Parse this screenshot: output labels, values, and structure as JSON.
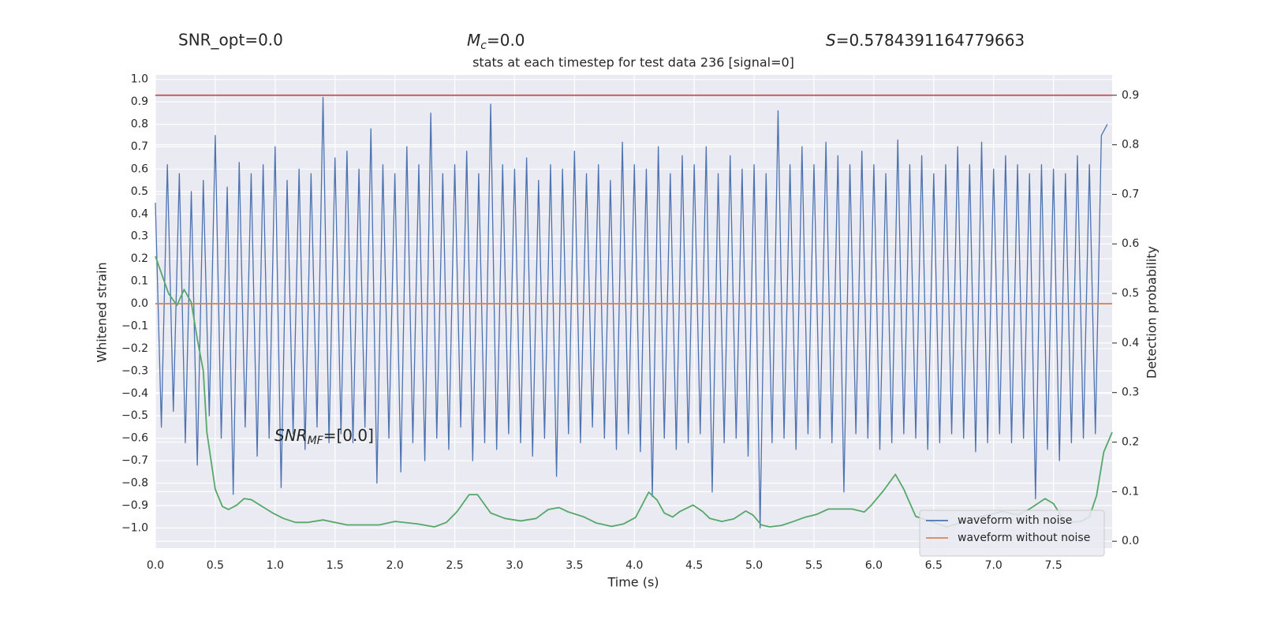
{
  "chart_data": {
    "type": "line",
    "title": "stats at each timestep for test data 236 [signal=0]",
    "annotations": {
      "snr_opt": {
        "text": "SNR_opt=0.0"
      },
      "mc": {
        "symbol": "M",
        "subscript": "c",
        "text": "=0.0"
      },
      "s": {
        "symbol": "S",
        "text": "=0.5784391164779663"
      },
      "snr_mf": {
        "symbol": "SNR",
        "subscript": "MF",
        "text": "=[0.0]"
      }
    },
    "x_label": "Time (s)",
    "y_label": "Whitened strain",
    "y2_label": "Detection probability",
    "xlim": [
      0,
      7.99
    ],
    "ylim": [
      -1.09,
      1.02
    ],
    "y2lim": [
      -0.014,
      0.941
    ],
    "xticks": [
      {
        "value": 0,
        "label": "0.0"
      },
      0.5,
      {
        "value": 1,
        "label": "1.0"
      },
      1.5,
      {
        "value": 2,
        "label": "2.0"
      },
      2.5,
      {
        "value": 3,
        "label": "3.0"
      },
      3.5,
      {
        "value": 4,
        "label": "4.0"
      },
      4.5,
      {
        "value": 5,
        "label": "5.0"
      },
      5.5,
      {
        "value": 6,
        "label": "6.0"
      },
      6.5,
      {
        "value": 7,
        "label": "7.0"
      },
      7.5
    ],
    "yticks": [
      {
        "value": 1,
        "label": "1.0"
      },
      0.9,
      0.8,
      0.7,
      0.6,
      0.5,
      0.4,
      0.3,
      0.2,
      0.1,
      {
        "value": 0,
        "label": "0.0"
      },
      {
        "value": -0.1,
        "label": "−0.1"
      },
      {
        "value": -0.2,
        "label": "−0.2"
      },
      {
        "value": -0.3,
        "label": "−0.3"
      },
      {
        "value": -0.4,
        "label": "−0.4"
      },
      {
        "value": -0.5,
        "label": "−0.5"
      },
      {
        "value": -0.6,
        "label": "−0.6"
      },
      {
        "value": -0.7,
        "label": "−0.7"
      },
      {
        "value": -0.8,
        "label": "−0.8"
      },
      {
        "value": -0.9,
        "label": "−0.9"
      },
      {
        "value": -1,
        "label": "−1.0"
      }
    ],
    "y2ticks": [
      0.9,
      0.8,
      0.7,
      0.6,
      0.5,
      0.4,
      0.3,
      0.2,
      0.1,
      {
        "value": 0,
        "label": "0.0"
      }
    ],
    "grid": true,
    "legend": "lower right",
    "series": [
      {
        "name": "waveform with noise",
        "color": "#4c72b0",
        "x": [
          0,
          0.05,
          0.1,
          0.15,
          0.2,
          0.25,
          0.3,
          0.35,
          0.4,
          0.45,
          0.5,
          0.55,
          0.6,
          0.65,
          0.7,
          0.75,
          0.8,
          0.85,
          0.9,
          0.95,
          1,
          1.05,
          1.1,
          1.15,
          1.2,
          1.25,
          1.3,
          1.35,
          1.4,
          1.45,
          1.5,
          1.55,
          1.6,
          1.65,
          1.7,
          1.75,
          1.8,
          1.85,
          1.9,
          1.95,
          2,
          2.05,
          2.1,
          2.15,
          2.2,
          2.25,
          2.3,
          2.35,
          2.4,
          2.45,
          2.5,
          2.55,
          2.6,
          2.65,
          2.7,
          2.75,
          2.8,
          2.85,
          2.9,
          2.95,
          3,
          3.05,
          3.1,
          3.15,
          3.2,
          3.25,
          3.3,
          3.35,
          3.4,
          3.45,
          3.5,
          3.55,
          3.6,
          3.65,
          3.7,
          3.75,
          3.8,
          3.85,
          3.9,
          3.95,
          4,
          4.05,
          4.1,
          4.15,
          4.2,
          4.25,
          4.3,
          4.35,
          4.4,
          4.45,
          4.5,
          4.55,
          4.6,
          4.65,
          4.7,
          4.75,
          4.8,
          4.85,
          4.9,
          4.95,
          5,
          5.05,
          5.1,
          5.15,
          5.2,
          5.25,
          5.3,
          5.35,
          5.4,
          5.45,
          5.5,
          5.55,
          5.6,
          5.65,
          5.7,
          5.75,
          5.8,
          5.85,
          5.9,
          5.95,
          6,
          6.05,
          6.1,
          6.15,
          6.2,
          6.25,
          6.3,
          6.35,
          6.4,
          6.45,
          6.5,
          6.55,
          6.6,
          6.65,
          6.7,
          6.75,
          6.8,
          6.85,
          6.9,
          6.95,
          7,
          7.05,
          7.1,
          7.15,
          7.2,
          7.25,
          7.3,
          7.35,
          7.4,
          7.45,
          7.5,
          7.55,
          7.6,
          7.65,
          7.7,
          7.75,
          7.8,
          7.85,
          7.9,
          7.95
        ],
        "values": [
          0.45,
          -0.55,
          0.62,
          -0.48,
          0.58,
          -0.62,
          0.5,
          -0.72,
          0.55,
          -0.5,
          0.75,
          -0.6,
          0.52,
          -0.85,
          0.63,
          -0.55,
          0.58,
          -0.68,
          0.62,
          -0.6,
          0.7,
          -0.82,
          0.55,
          -0.58,
          0.6,
          -0.65,
          0.58,
          -0.55,
          0.92,
          -0.62,
          0.65,
          -0.58,
          0.68,
          -0.62,
          0.6,
          -0.55,
          0.78,
          -0.8,
          0.62,
          -0.6,
          0.58,
          -0.75,
          0.7,
          -0.62,
          0.62,
          -0.7,
          0.85,
          -0.6,
          0.58,
          -0.65,
          0.62,
          -0.55,
          0.68,
          -0.7,
          0.58,
          -0.62,
          0.89,
          -0.65,
          0.62,
          -0.58,
          0.6,
          -0.62,
          0.65,
          -0.68,
          0.55,
          -0.6,
          0.62,
          -0.77,
          0.6,
          -0.58,
          0.68,
          -0.62,
          0.58,
          -0.55,
          0.62,
          -0.6,
          0.55,
          -0.65,
          0.72,
          -0.58,
          0.62,
          -0.66,
          0.6,
          -0.86,
          0.7,
          -0.6,
          0.58,
          -0.65,
          0.66,
          -0.62,
          0.62,
          -0.58,
          0.7,
          -0.84,
          0.58,
          -0.62,
          0.66,
          -0.6,
          0.6,
          -0.68,
          0.62,
          -1.0,
          0.58,
          -0.62,
          0.86,
          -0.6,
          0.62,
          -0.65,
          0.7,
          -0.58,
          0.62,
          -0.6,
          0.72,
          -0.62,
          0.66,
          -0.84,
          0.62,
          -0.58,
          0.68,
          -0.6,
          0.62,
          -0.65,
          0.58,
          -0.62,
          0.73,
          -0.58,
          0.62,
          -0.6,
          0.66,
          -0.65,
          0.58,
          -0.62,
          0.62,
          -0.58,
          0.7,
          -0.6,
          0.62,
          -0.66,
          0.72,
          -0.62,
          0.6,
          -0.58,
          0.66,
          -0.62,
          0.62,
          -0.6,
          0.58,
          -0.87,
          0.62,
          -0.65,
          0.6,
          -0.7,
          0.58,
          -0.62,
          0.66,
          -0.6,
          0.62,
          -0.58,
          0.75,
          0.8
        ]
      },
      {
        "name": "waveform without noise",
        "color": "#dd8452",
        "x": [
          0,
          7.99
        ],
        "values": [
          0,
          0
        ]
      },
      {
        "color": "#55a868",
        "axis": "y2",
        "x": [
          0,
          0.05,
          0.11,
          0.18,
          0.24,
          0.3,
          0.35,
          0.4,
          0.43,
          0.5,
          0.56,
          0.61,
          0.68,
          0.74,
          0.8,
          0.88,
          0.98,
          1.07,
          1.17,
          1.27,
          1.4,
          1.6,
          1.87,
          2,
          2.19,
          2.33,
          2.43,
          2.52,
          2.62,
          2.69,
          2.8,
          2.92,
          3.05,
          3.18,
          3.28,
          3.37,
          3.45,
          3.58,
          3.68,
          3.81,
          3.91,
          4.01,
          4.12,
          4.19,
          4.25,
          4.32,
          4.38,
          4.49,
          4.57,
          4.63,
          4.73,
          4.83,
          4.93,
          4.99,
          5.06,
          5.13,
          5.23,
          5.33,
          5.42,
          5.52,
          5.62,
          5.82,
          5.92,
          5.98,
          6.08,
          6.18,
          6.25,
          6.35,
          6.61,
          6.87,
          7.07,
          7.2,
          7.3,
          7.43,
          7.5,
          7.57,
          7.63,
          7.73,
          7.8,
          7.86,
          7.92,
          7.99
        ],
        "values": [
          0.575,
          0.541,
          0.5,
          0.476,
          0.508,
          0.482,
          0.408,
          0.344,
          0.22,
          0.105,
          0.07,
          0.064,
          0.073,
          0.086,
          0.084,
          0.072,
          0.057,
          0.046,
          0.038,
          0.038,
          0.043,
          0.033,
          0.033,
          0.04,
          0.035,
          0.029,
          0.038,
          0.06,
          0.094,
          0.094,
          0.057,
          0.046,
          0.041,
          0.046,
          0.064,
          0.068,
          0.059,
          0.049,
          0.037,
          0.03,
          0.035,
          0.048,
          0.099,
          0.083,
          0.057,
          0.049,
          0.06,
          0.073,
          0.06,
          0.046,
          0.04,
          0.045,
          0.061,
          0.053,
          0.033,
          0.029,
          0.032,
          0.04,
          0.048,
          0.054,
          0.065,
          0.065,
          0.059,
          0.073,
          0.102,
          0.135,
          0.105,
          0.05,
          0.029,
          0.048,
          0.06,
          0.053,
          0.065,
          0.086,
          0.076,
          0.049,
          0.038,
          0.04,
          0.049,
          0.092,
          0.18,
          0.22
        ]
      },
      {
        "color": "#c44e52",
        "axis": "y2",
        "x": [
          0,
          7.99
        ],
        "values": [
          0.9,
          0.9
        ]
      }
    ]
  }
}
